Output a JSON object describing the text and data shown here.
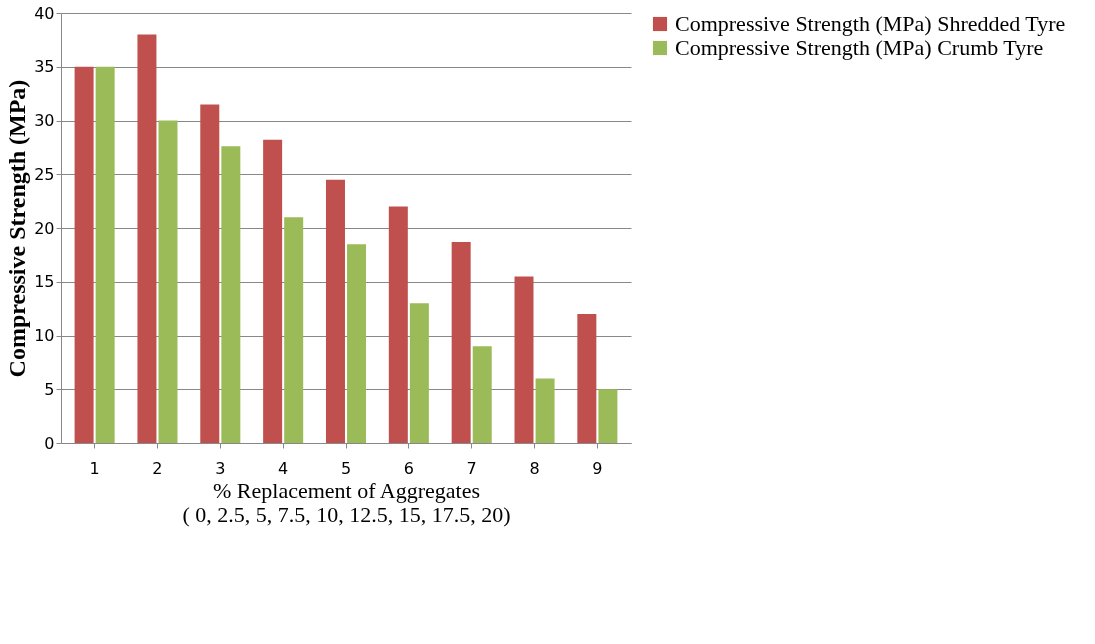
{
  "chart_data": {
    "type": "bar",
    "xlabel": "% Replacement of Aggregates\n( 0, 2.5, 5, 7.5, 10, 12.5, 15, 17.5, 20)",
    "ylabel": "Compressive Strength (MPa)",
    "categories": [
      "1",
      "2",
      "3",
      "4",
      "5",
      "6",
      "7",
      "8",
      "9"
    ],
    "series": [
      {
        "name": "Compressive Strength (MPa) Shredded Tyre",
        "color": "#c0504d",
        "values": [
          35,
          38,
          31.5,
          28.2,
          24.5,
          22,
          18.7,
          15.5,
          12
        ]
      },
      {
        "name": "Compressive Strength (MPa) Crumb Tyre",
        "color": "#9bbb59",
        "values": [
          35,
          30,
          27.6,
          21,
          18.5,
          13,
          9,
          6,
          5
        ]
      }
    ],
    "ylim": [
      0,
      40
    ],
    "yticks": [
      0,
      5,
      10,
      15,
      20,
      25,
      30,
      35,
      40
    ],
    "grid": "y",
    "legend": "right"
  }
}
